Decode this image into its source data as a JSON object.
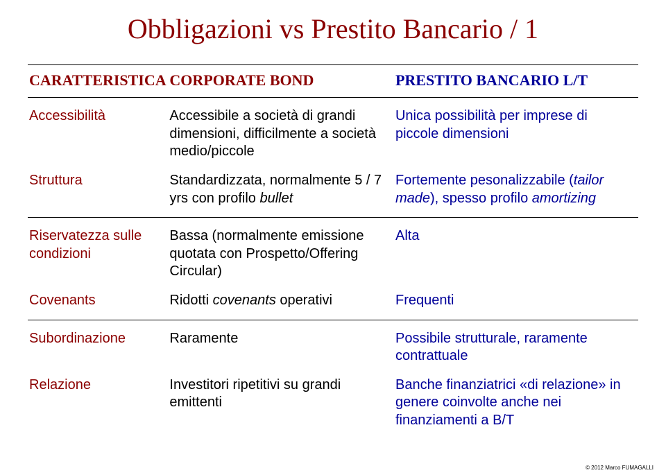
{
  "colors": {
    "title": "#8b0000",
    "header_col0": "#8b0000",
    "header_col1": "#8b0000",
    "header_col2": "#000099",
    "row_label": "#8b0000",
    "col1_text": "#000000",
    "col2_text": "#000099",
    "border": "#000000",
    "background": "#ffffff"
  },
  "title": "Obbligazioni vs Prestito Bancario / 1",
  "headers": {
    "col0": "CARATTERISTICA",
    "col1": "CORPORATE BOND",
    "col2": "PRESTITO BANCARIO L/T"
  },
  "section1": {
    "rows": [
      {
        "label": "Accessibilità",
        "col1": "Accessibile a società di grandi dimensioni, difficilmente a società medio/piccole",
        "col2": "Unica possibilità per imprese di piccole dimensioni"
      },
      {
        "label": "Struttura",
        "col1_pre": "Standardizzata, normalmente 5 / 7 yrs con profilo ",
        "col1_italic": "bullet",
        "col2_pre": "Fortemente pesonalizzabile (",
        "col2_italic": "tailor made",
        "col2_post": "), spesso profilo ",
        "col2_italic2": "amortizing"
      }
    ]
  },
  "section2": {
    "rows": [
      {
        "label": "Riservatezza sulle condizioni",
        "col1": "Bassa (normalmente emissione quotata con Prospetto/Offering Circular)",
        "col2": "Alta"
      },
      {
        "label": "Covenants",
        "col1_pre": "Ridotti ",
        "col1_italic": "covenants",
        "col1_post": " operativi",
        "col2": "Frequenti"
      }
    ]
  },
  "section3": {
    "rows": [
      {
        "label": "Subordinazione",
        "col1": "Raramente",
        "col2": "Possibile strutturale, raramente contrattuale"
      },
      {
        "label": "Relazione",
        "col1": "Investitori ripetitivi su grandi emittenti",
        "col2": "Banche finanziatrici «di relazione» in genere coinvolte anche nei finanziamenti a B/T"
      }
    ]
  },
  "footer": "© 2012 Marco FUMAGALLI"
}
